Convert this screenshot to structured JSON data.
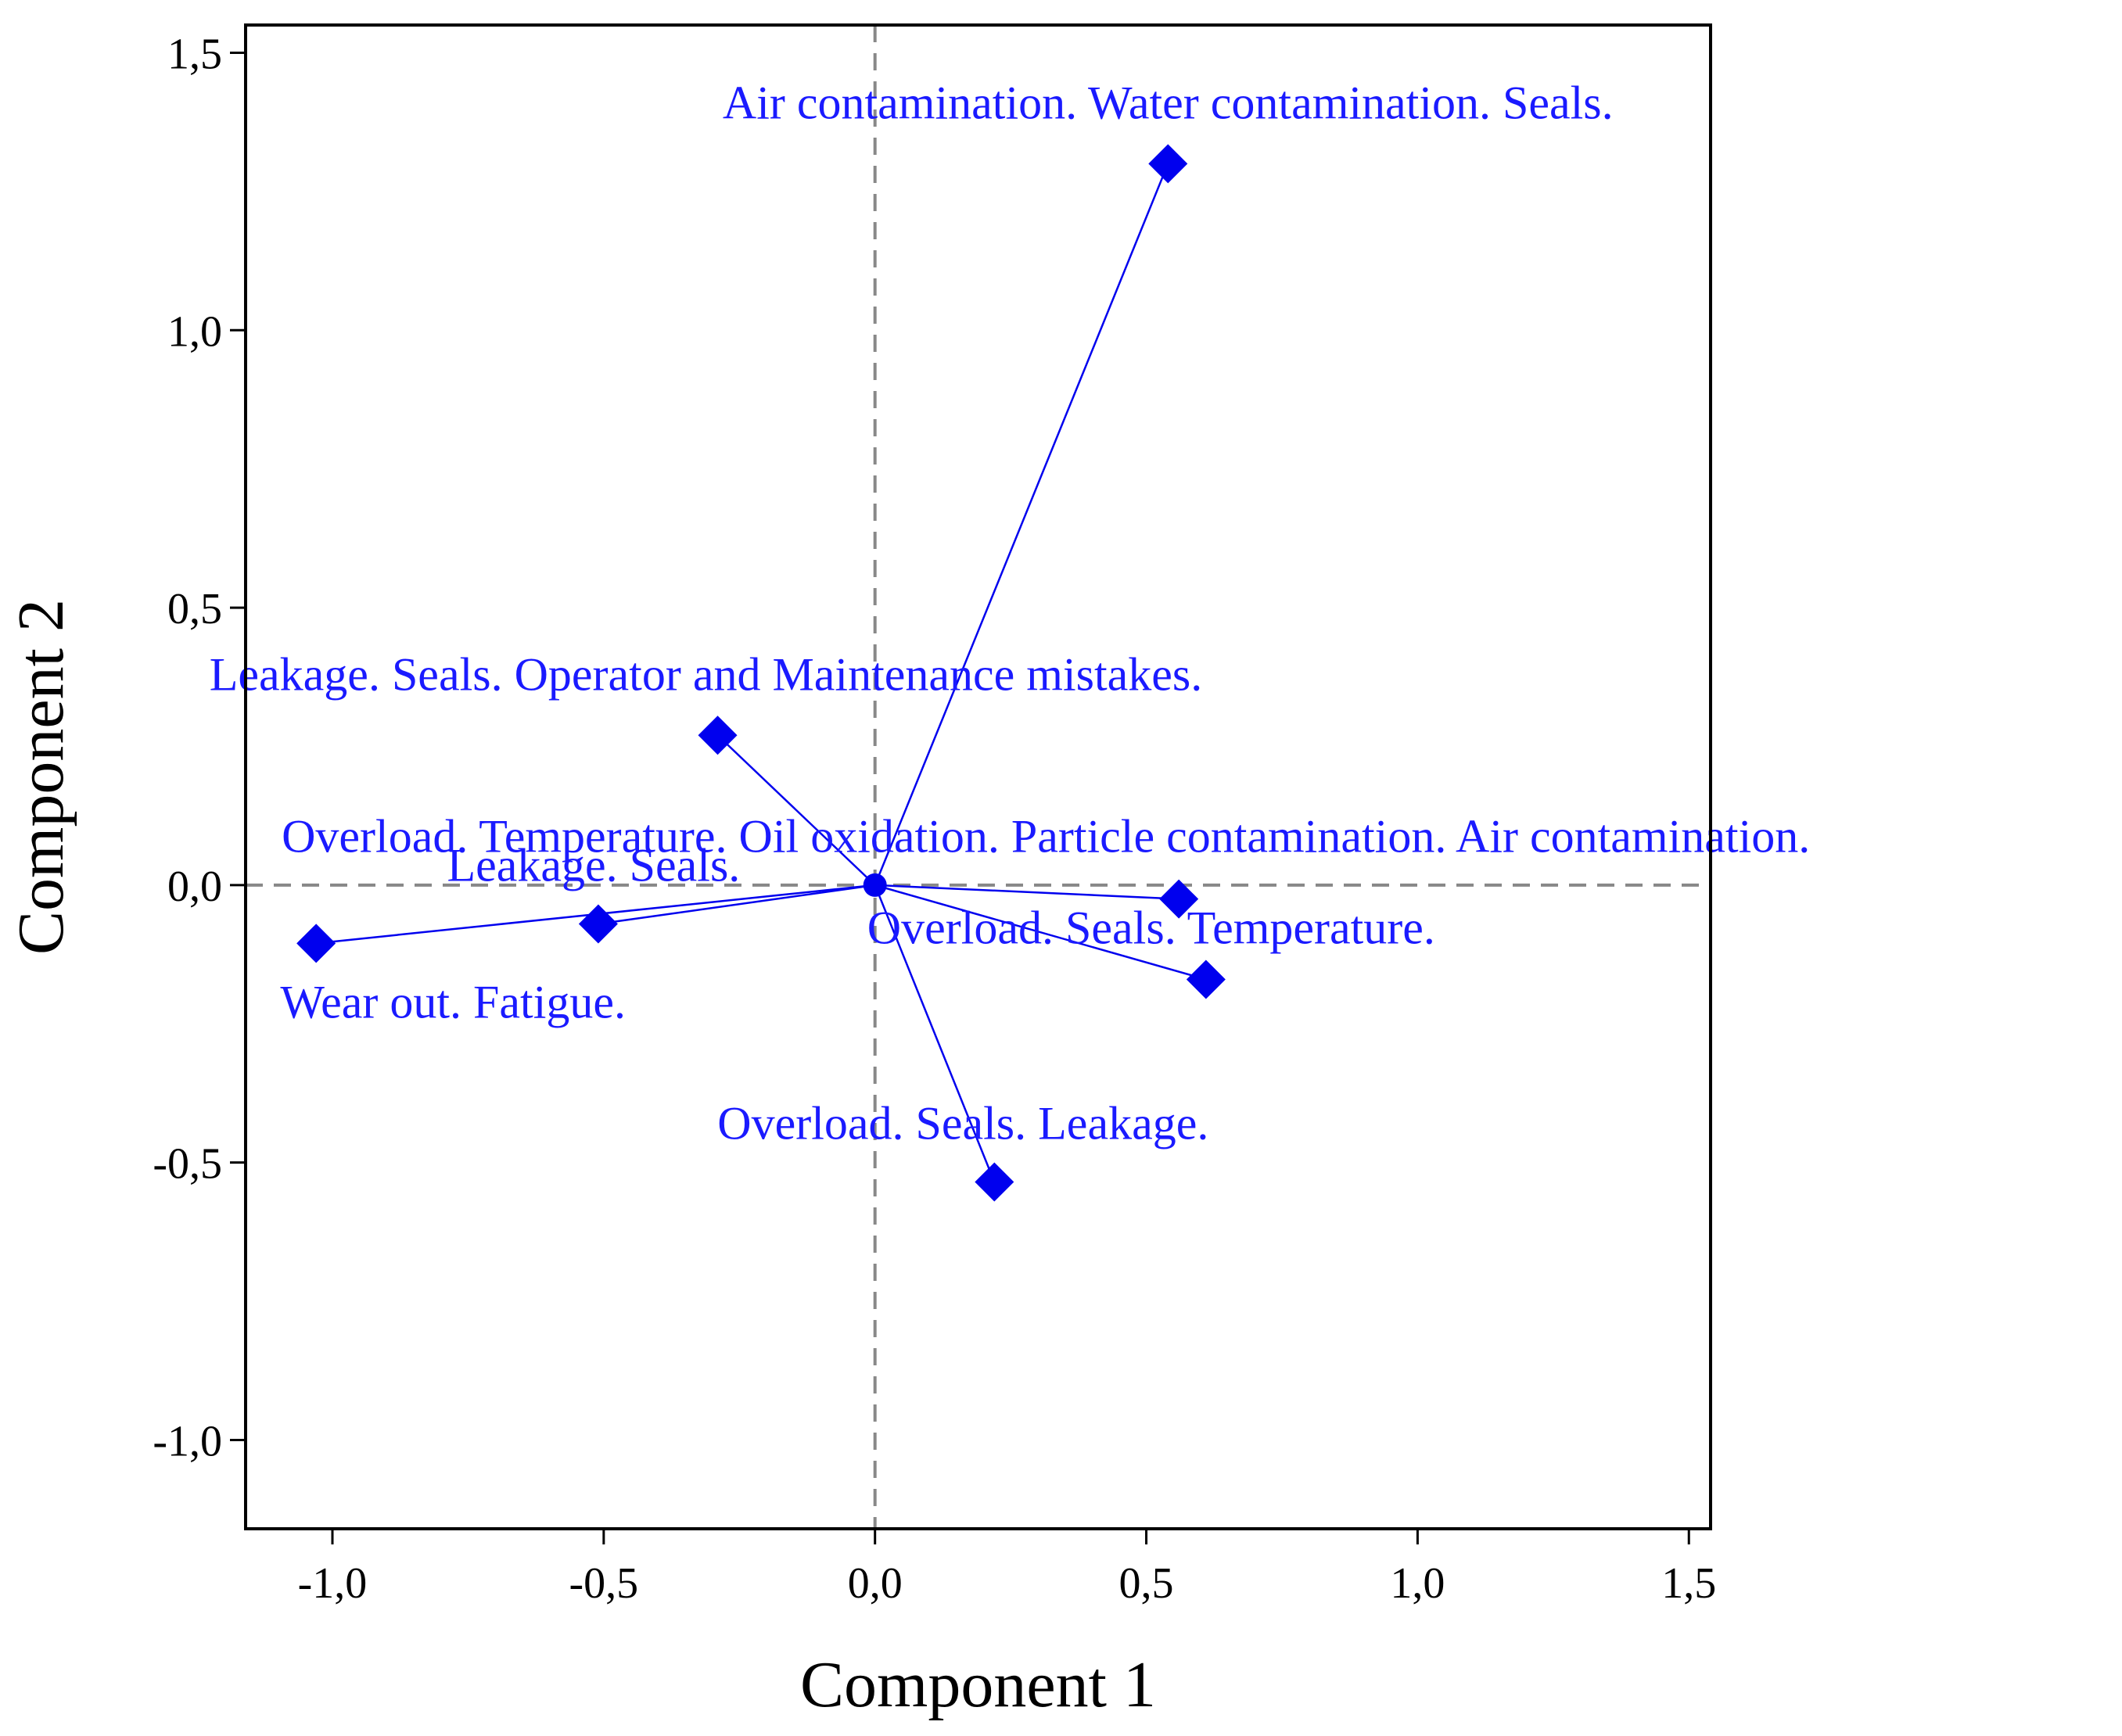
{
  "chart_data": {
    "type": "scatter",
    "subtype": "loading-plot-with-vectors-from-origin",
    "xlabel": "Component 1",
    "ylabel": "Component 2",
    "xlim": [
      -1.16,
      1.54
    ],
    "ylim": [
      -1.16,
      1.55
    ],
    "xticks": [
      -1.0,
      -0.5,
      0.0,
      0.5,
      1.0,
      1.5
    ],
    "yticks": [
      -1.0,
      -0.5,
      0.0,
      0.5,
      1.0,
      1.5
    ],
    "xtick_labels": [
      "-1,0",
      "-0,5",
      "0,0",
      "0,5",
      "1,0",
      "1,5"
    ],
    "ytick_labels": [
      "-1,0",
      "-0,5",
      "0,0",
      "0,5",
      "1,0",
      "1,5"
    ],
    "reference_lines": {
      "x": 0,
      "y": 0,
      "style": "dashed",
      "color": "#888888"
    },
    "grid": false,
    "legend": "none",
    "marker": "diamond",
    "color": "#0000ee",
    "label_color": "#1a1aff",
    "origin_marker": "circle",
    "points": [
      {
        "x": 0.54,
        "y": 1.3,
        "label": "Air contamination. Water contamination. Seals."
      },
      {
        "x": -0.29,
        "y": 0.27,
        "label": "Leakage. Seals. Operator and Maintenance mistakes."
      },
      {
        "x": 0.56,
        "y": -0.025,
        "label": "Overload. Temperature. Oil oxidation. Particle contamination. Air contamination."
      },
      {
        "x": -0.51,
        "y": -0.07,
        "label": "Leakage. Seals."
      },
      {
        "x": 0.61,
        "y": -0.17,
        "label": "Overload. Seals. Temperature."
      },
      {
        "x": -1.03,
        "y": -0.105,
        "label": "Wear out. Fatigue."
      },
      {
        "x": 0.22,
        "y": -0.535,
        "label": "Overload. Seals. Leakage."
      }
    ]
  }
}
